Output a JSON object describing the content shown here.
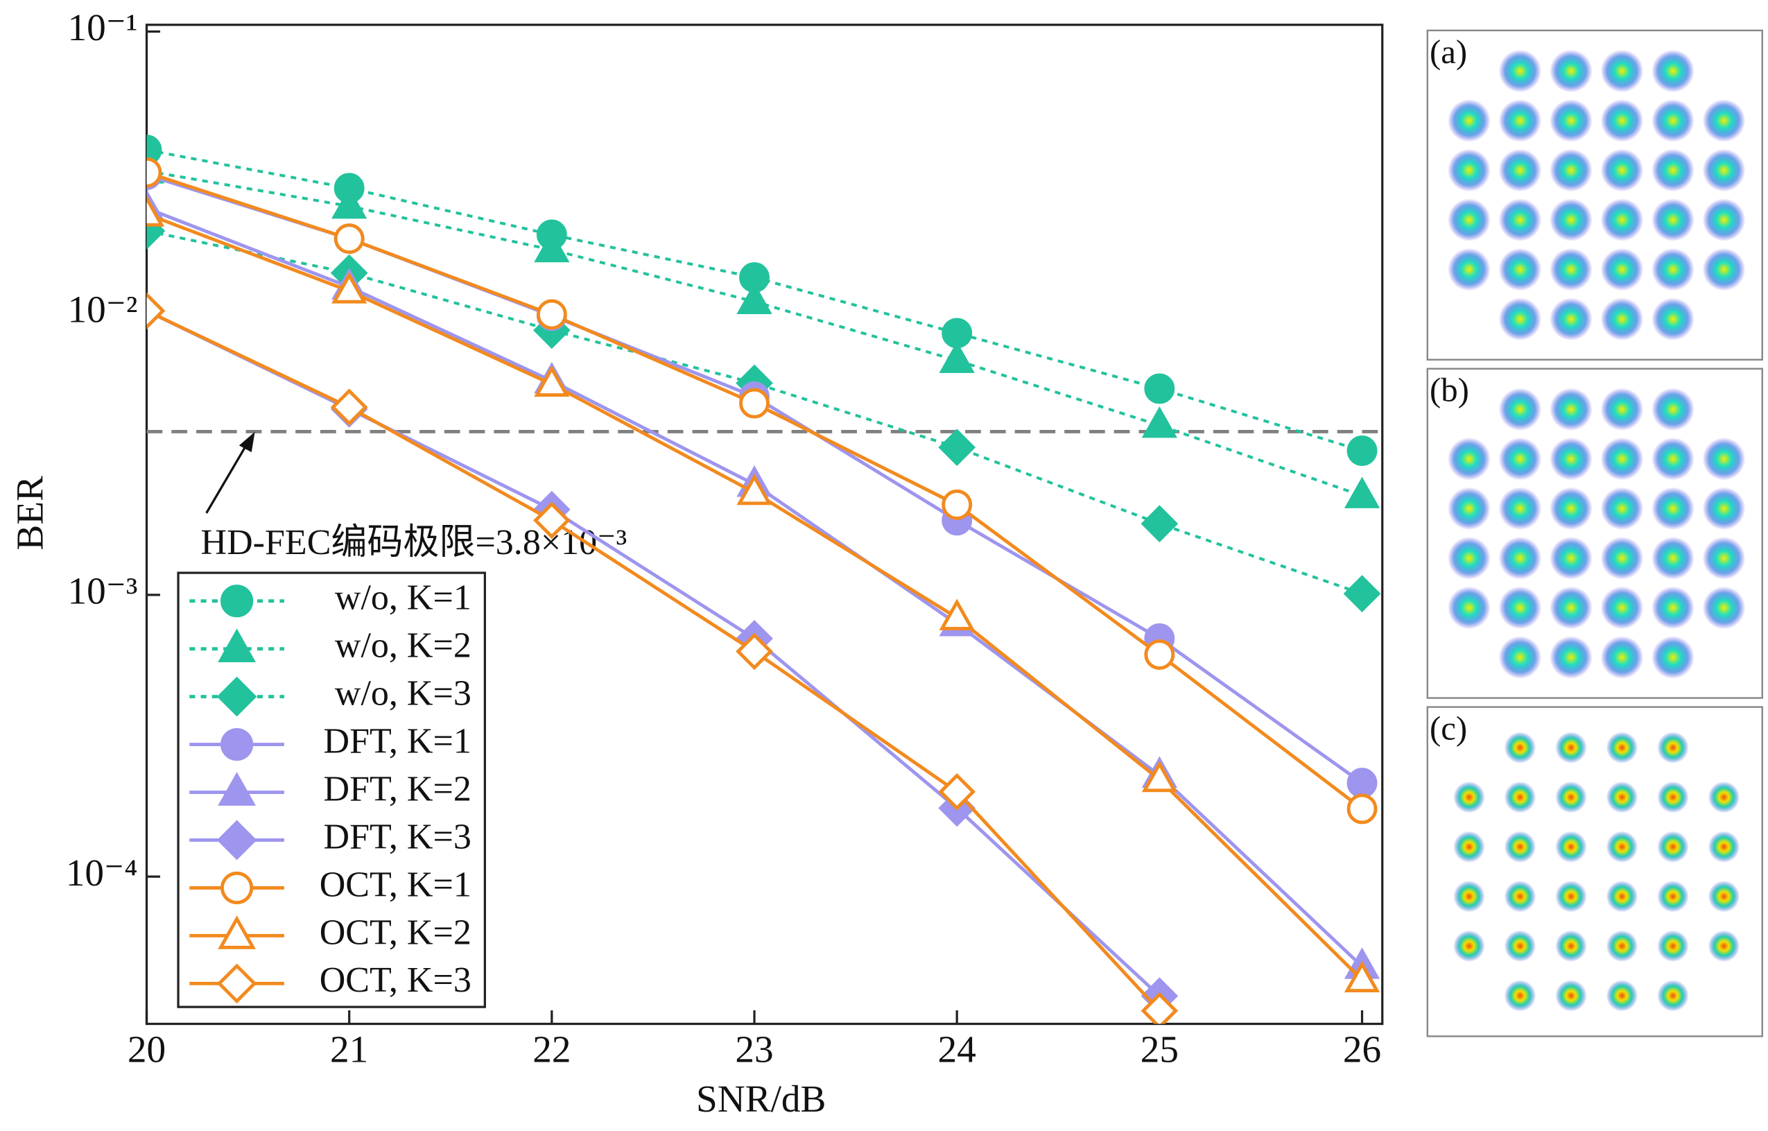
{
  "chart_data": {
    "type": "line",
    "xlabel": "SNR/dB",
    "ylabel": "BER",
    "log_y": true,
    "x": [
      20,
      21,
      22,
      23,
      24,
      25,
      26
    ],
    "xlim": [
      20,
      26.1
    ],
    "xticks": [
      20,
      21,
      22,
      23,
      24,
      25,
      26
    ],
    "ylim": [
      3e-05,
      0.1
    ],
    "yticks": [
      {
        "value": 0.1,
        "label": "10⁻¹"
      },
      {
        "value": 0.01,
        "label": "10⁻²"
      },
      {
        "value": 0.001,
        "label": "10⁻³"
      },
      {
        "value": 0.0001,
        "label": "10⁻⁴"
      }
    ],
    "hline": {
      "value": 0.0038,
      "label": "HD-FEC编码极限=3.8×10⁻³",
      "color": "#808080"
    },
    "legend": "lower left",
    "series": [
      {
        "name": "w/o, K=1",
        "color": "#22c29c",
        "marker": "circle",
        "filled": true,
        "line": "dotted",
        "values": [
          0.038,
          0.0278,
          0.019,
          0.0134,
          0.0085,
          0.0054,
          0.00325
        ]
      },
      {
        "name": "w/o, K=2",
        "color": "#22c29c",
        "marker": "triangle",
        "filled": true,
        "line": "dotted",
        "values": [
          0.032,
          0.024,
          0.0168,
          0.011,
          0.0068,
          0.004,
          0.00225
        ]
      },
      {
        "name": "w/o, K=3",
        "color": "#22c29c",
        "marker": "diamond",
        "filled": true,
        "line": "dotted",
        "values": [
          0.0196,
          0.0139,
          0.0087,
          0.00565,
          0.00334,
          0.00179,
          0.00101
        ]
      },
      {
        "name": "DFT, K=1",
        "color": "#9d95ee",
        "marker": "circle",
        "filled": true,
        "line": "solid",
        "values": [
          0.031,
          0.0184,
          0.0098,
          0.00506,
          0.00184,
          0.0007,
          0.000215
        ]
      },
      {
        "name": "DFT, K=2",
        "color": "#9d95ee",
        "marker": "triangle",
        "filled": true,
        "line": "solid",
        "values": [
          0.0236,
          0.0124,
          0.00575,
          0.00247,
          0.00079,
          0.000229,
          4.8e-05
        ]
      },
      {
        "name": "DFT, K=3",
        "color": "#9d95ee",
        "marker": "diamond",
        "filled": true,
        "line": "solid",
        "values": [
          0.0102,
          0.00457,
          0.00201,
          0.0007,
          0.000175,
          3.77e-05,
          null
        ]
      },
      {
        "name": "OCT, K=1",
        "color": "#f28a1e",
        "marker": "circle",
        "filled": false,
        "line": "solid",
        "values": [
          0.0316,
          0.0184,
          0.0099,
          0.00479,
          0.00209,
          0.000614,
          0.000174
        ]
      },
      {
        "name": "OCT, K=2",
        "color": "#f28a1e",
        "marker": "triangle",
        "filled": false,
        "line": "solid",
        "values": [
          0.0225,
          0.012,
          0.0056,
          0.00231,
          0.00083,
          0.000221,
          4.3e-05
        ]
      },
      {
        "name": "OCT, K=3",
        "color": "#f28a1e",
        "marker": "diamond",
        "filled": false,
        "line": "solid",
        "values": [
          0.0102,
          0.00464,
          0.00184,
          0.00063,
          0.0002,
          3.34e-05,
          null
        ]
      }
    ]
  },
  "panels": [
    "(a)",
    "(b)",
    "(c)"
  ]
}
